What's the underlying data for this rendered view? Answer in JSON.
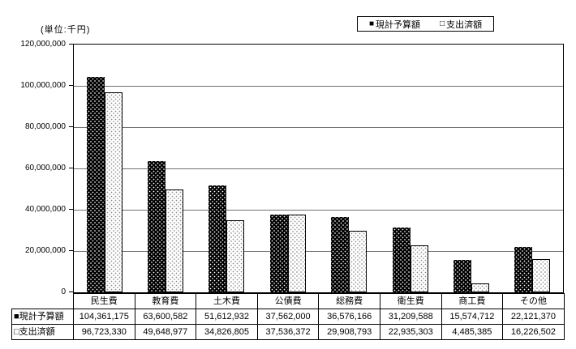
{
  "unit_note": "(単位:千円)",
  "chart_data": {
    "type": "bar",
    "unit_label": "(単位:千円)",
    "categories": [
      "民生費",
      "教育費",
      "土木費",
      "公債費",
      "総務費",
      "衛生費",
      "商工費",
      "その他"
    ],
    "series": [
      {
        "name": "現計予算額",
        "marker": "filled",
        "marker_glyph": "■",
        "color": "#000000",
        "values": [
          104361175,
          63600582,
          51612932,
          37562000,
          36576166,
          31209588,
          15574712,
          22121370
        ]
      },
      {
        "name": "支出済額",
        "marker": "open",
        "marker_glyph": "□",
        "color": "#ffffff",
        "values": [
          96723330,
          49648977,
          34826805,
          37536372,
          29908793,
          22935303,
          4485385,
          16226502
        ]
      }
    ],
    "ylim": [
      0,
      120000000
    ],
    "ytick_interval": 20000000,
    "ytick_labels": [
      "0",
      "20,000,000",
      "40,000,000",
      "60,000,000",
      "80,000,000",
      "100,000,000",
      "120,000,000"
    ],
    "grid": true,
    "legend_position": "top-right",
    "colors": {
      "axis": "#000000",
      "grid": "#707070",
      "filled_bar": "#000000",
      "open_bar": "#ffffff"
    }
  }
}
